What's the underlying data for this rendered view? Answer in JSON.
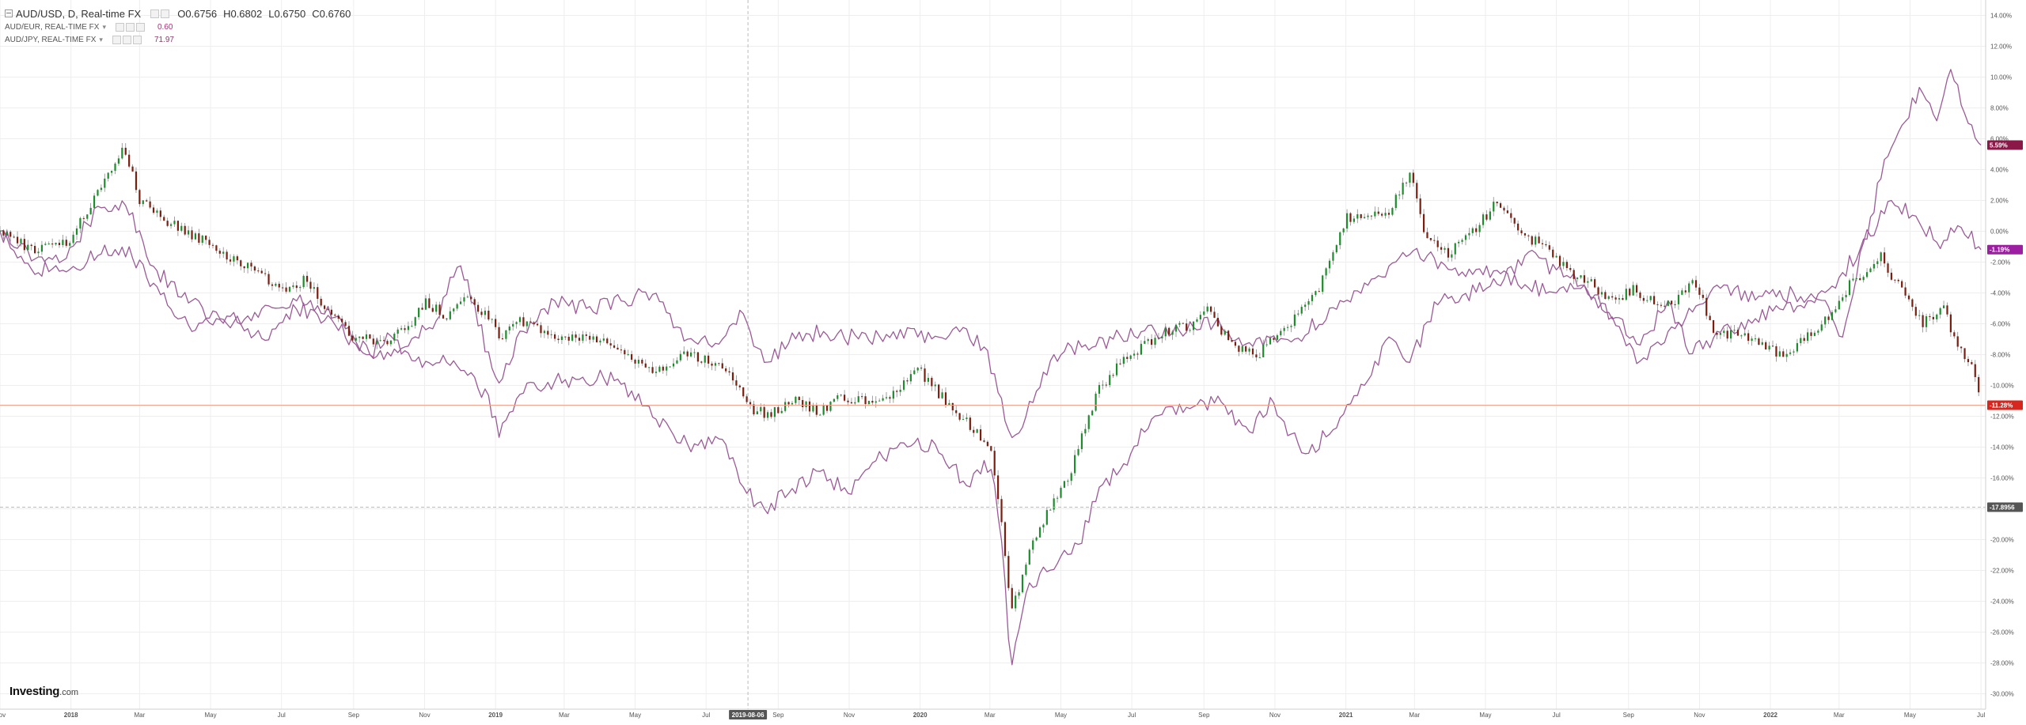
{
  "header": {
    "symbol_title": "AUD/USD, D, Real-time FX",
    "ohlc": {
      "open": "O0.6756",
      "high": "H0.6802",
      "low": "L0.6750",
      "close": "C0.6760"
    },
    "overlays": [
      {
        "label": "AUD/EUR, REAL-TIME FX",
        "value": "0.60",
        "color": "#b0297a"
      },
      {
        "label": "AUD/JPY, REAL-TIME FX",
        "value": "71.97",
        "color": "#8d3b6b"
      }
    ]
  },
  "watermark": {
    "brand": "Investing",
    "suffix": ".com"
  },
  "colors": {
    "up_candle": "#1e8c2c",
    "down_candle": "#7a1e10",
    "compare_line": "#9b5a97",
    "price_line": "#f3a28d",
    "price_badge": "#d7261e",
    "jpy_badge": "#8a1948",
    "eur_badge": "#9b1fa0",
    "crosshair_badge": "#555555",
    "grid": "#eeeeee"
  },
  "chart_data": {
    "type": "line",
    "title": "AUD/USD, D, Real-time FX",
    "x_range": [
      "2017-11-01",
      "2022-07-05"
    ],
    "y_unit": "%",
    "y_range": [
      -31,
      15
    ],
    "y_ticks": [
      "14.00%",
      "12.00%",
      "10.00%",
      "8.00%",
      "6.00%",
      "4.00%",
      "2.00%",
      "0.00%",
      "-2.00%",
      "-4.00%",
      "-6.00%",
      "-8.00%",
      "-10.00%",
      "-12.00%",
      "-14.00%",
      "-16.00%",
      "-18.00%",
      "-20.00%",
      "-22.00%",
      "-24.00%",
      "-26.00%",
      "-28.00%",
      "-30.00%"
    ],
    "y_tick_values": [
      14,
      12,
      10,
      8,
      6,
      4,
      2,
      0,
      -2,
      -4,
      -6,
      -8,
      -10,
      -12,
      -14,
      -16,
      -18,
      -20,
      -22,
      -24,
      -26,
      -28,
      -30
    ],
    "x_ticks": [
      {
        "label": "Nov",
        "date": "2017-11-01"
      },
      {
        "label": "2018",
        "date": "2018-01-01"
      },
      {
        "label": "Mar",
        "date": "2018-03-01"
      },
      {
        "label": "May",
        "date": "2018-05-01"
      },
      {
        "label": "Jul",
        "date": "2018-07-01"
      },
      {
        "label": "Sep",
        "date": "2018-09-01"
      },
      {
        "label": "Nov",
        "date": "2018-11-01"
      },
      {
        "label": "2019",
        "date": "2019-01-01"
      },
      {
        "label": "Mar",
        "date": "2019-03-01"
      },
      {
        "label": "May",
        "date": "2019-05-01"
      },
      {
        "label": "Jul",
        "date": "2019-07-01"
      },
      {
        "label": "Sep",
        "date": "2019-09-01"
      },
      {
        "label": "Nov",
        "date": "2019-11-01"
      },
      {
        "label": "2020",
        "date": "2020-01-01"
      },
      {
        "label": "Mar",
        "date": "2020-03-01"
      },
      {
        "label": "May",
        "date": "2020-05-01"
      },
      {
        "label": "Jul",
        "date": "2020-07-01"
      },
      {
        "label": "Sep",
        "date": "2020-09-01"
      },
      {
        "label": "Nov",
        "date": "2020-11-01"
      },
      {
        "label": "2021",
        "date": "2021-01-01"
      },
      {
        "label": "Mar",
        "date": "2021-03-01"
      },
      {
        "label": "May",
        "date": "2021-05-01"
      },
      {
        "label": "Jul",
        "date": "2021-07-01"
      },
      {
        "label": "Sep",
        "date": "2021-09-01"
      },
      {
        "label": "Nov",
        "date": "2021-11-01"
      },
      {
        "label": "2022",
        "date": "2022-01-01"
      },
      {
        "label": "Mar",
        "date": "2022-03-01"
      },
      {
        "label": "May",
        "date": "2022-05-01"
      },
      {
        "label": "Jul",
        "date": "2022-07-01"
      }
    ],
    "crosshair": {
      "x_label": "2019-08-06",
      "x_date": "2019-08-06",
      "y_label": "-17.8956",
      "y_value": -17.8956
    },
    "last_value_labels": [
      {
        "series": "AUD/JPY, REAL-TIME FX",
        "label": "5.59%",
        "value": 5.59
      },
      {
        "series": "AUD/EUR, REAL-TIME FX",
        "label": "-1.19%",
        "value": -1.19
      },
      {
        "series": "AUD/USD, D, Real-time FX",
        "label": "-11.28%",
        "value": -11.28
      }
    ],
    "price_line_value": -11.28,
    "grid": true,
    "series": [
      {
        "name": "AUD/USD, D, Real-time FX",
        "style": "candlestick",
        "x": [
          "2017-11-01",
          "2017-12-01",
          "2018-01-01",
          "2018-01-26",
          "2018-02-15",
          "2018-03-01",
          "2018-03-20",
          "2018-04-15",
          "2018-05-01",
          "2018-05-20",
          "2018-06-10",
          "2018-07-01",
          "2018-07-20",
          "2018-08-10",
          "2018-09-01",
          "2018-09-25",
          "2018-10-15",
          "2018-11-01",
          "2018-11-20",
          "2018-12-05",
          "2019-01-01",
          "2019-01-03",
          "2019-01-20",
          "2019-02-10",
          "2019-03-01",
          "2019-03-20",
          "2019-04-10",
          "2019-05-01",
          "2019-05-20",
          "2019-06-10",
          "2019-07-01",
          "2019-07-20",
          "2019-08-06",
          "2019-08-25",
          "2019-09-15",
          "2019-10-05",
          "2019-10-25",
          "2019-11-15",
          "2019-12-05",
          "2019-12-31",
          "2020-01-20",
          "2020-02-10",
          "2020-03-01",
          "2020-03-10",
          "2020-03-19",
          "2020-04-01",
          "2020-04-20",
          "2020-05-10",
          "2020-06-01",
          "2020-06-20",
          "2020-07-10",
          "2020-08-01",
          "2020-08-20",
          "2020-09-05",
          "2020-09-25",
          "2020-10-15",
          "2020-11-01",
          "2020-11-20",
          "2020-12-10",
          "2021-01-01",
          "2021-01-20",
          "2021-02-05",
          "2021-02-25",
          "2021-03-10",
          "2021-03-31",
          "2021-04-20",
          "2021-05-10",
          "2021-06-01",
          "2021-06-20",
          "2021-07-10",
          "2021-08-01",
          "2021-08-20",
          "2021-09-05",
          "2021-09-25",
          "2021-10-15",
          "2021-10-27",
          "2021-11-15",
          "2021-12-05",
          "2021-12-25",
          "2022-01-15",
          "2022-02-01",
          "2022-02-20",
          "2022-03-10",
          "2022-04-05",
          "2022-04-20",
          "2022-05-12",
          "2022-05-31",
          "2022-06-10",
          "2022-06-25",
          "2022-07-01"
        ],
        "values": [
          0.0,
          -1.3,
          -0.5,
          2.8,
          5.6,
          2.0,
          0.8,
          -0.2,
          -0.8,
          -1.8,
          -2.5,
          -3.8,
          -3.2,
          -5.0,
          -6.9,
          -7.2,
          -6.5,
          -4.5,
          -5.6,
          -4.0,
          -6.0,
          -7.2,
          -5.8,
          -6.5,
          -7.0,
          -6.8,
          -7.4,
          -8.6,
          -9.0,
          -8.0,
          -8.3,
          -9.0,
          -11.5,
          -11.9,
          -10.8,
          -11.8,
          -10.8,
          -11.0,
          -10.6,
          -9.0,
          -10.8,
          -12.4,
          -13.8,
          -18.2,
          -25.0,
          -21.5,
          -18.0,
          -15.5,
          -10.5,
          -8.5,
          -7.5,
          -6.4,
          -6.2,
          -5.0,
          -7.5,
          -8.1,
          -7.0,
          -5.5,
          -3.5,
          0.8,
          1.2,
          1.0,
          3.8,
          -0.5,
          -1.4,
          0.0,
          1.8,
          -0.1,
          -1.0,
          -2.5,
          -3.5,
          -4.5,
          -3.8,
          -4.8,
          -4.3,
          -3.0,
          -6.8,
          -6.5,
          -7.4,
          -8.2,
          -6.8,
          -5.5,
          -3.5,
          -1.6,
          -3.4,
          -6.0,
          -5.1,
          -7.5,
          -9.0,
          -11.28
        ]
      },
      {
        "name": "AUD/JPY, REAL-TIME FX",
        "style": "line",
        "x": [
          "2017-11-01",
          "2017-12-01",
          "2018-01-01",
          "2018-01-26",
          "2018-02-15",
          "2018-03-15",
          "2018-04-15",
          "2018-05-15",
          "2018-06-15",
          "2018-07-15",
          "2018-08-15",
          "2018-09-15",
          "2018-10-01",
          "2018-10-25",
          "2018-11-20",
          "2018-12-15",
          "2019-01-01",
          "2019-01-03",
          "2019-01-25",
          "2019-02-15",
          "2019-03-15",
          "2019-04-15",
          "2019-05-15",
          "2019-06-15",
          "2019-07-15",
          "2019-08-05",
          "2019-08-20",
          "2019-09-10",
          "2019-10-05",
          "2019-10-31",
          "2019-11-25",
          "2019-12-20",
          "2020-01-15",
          "2020-02-10",
          "2020-03-01",
          "2020-03-10",
          "2020-03-19",
          "2020-04-01",
          "2020-04-20",
          "2020-05-15",
          "2020-06-05",
          "2020-06-25",
          "2020-07-20",
          "2020-08-20",
          "2020-09-15",
          "2020-10-10",
          "2020-10-30",
          "2020-11-25",
          "2020-12-20",
          "2021-01-15",
          "2021-02-10",
          "2021-02-25",
          "2021-03-20",
          "2021-04-15",
          "2021-05-10",
          "2021-06-05",
          "2021-07-01",
          "2021-07-25",
          "2021-08-20",
          "2021-09-10",
          "2021-10-05",
          "2021-10-25",
          "2021-11-20",
          "2021-12-15",
          "2022-01-10",
          "2022-02-05",
          "2022-03-01",
          "2022-03-25",
          "2022-04-10",
          "2022-04-25",
          "2022-05-10",
          "2022-05-25",
          "2022-06-05",
          "2022-06-20",
          "2022-07-01"
        ],
        "values": [
          0.0,
          -1.8,
          -2.5,
          -1.5,
          -1.0,
          -3.5,
          -6.5,
          -5.5,
          -7.0,
          -5.0,
          -6.0,
          -8.0,
          -6.5,
          -8.5,
          -8.5,
          -9.5,
          -12.0,
          -13.5,
          -10.5,
          -9.8,
          -9.6,
          -9.5,
          -12.0,
          -13.8,
          -13.5,
          -17.0,
          -18.0,
          -17.0,
          -15.5,
          -17.0,
          -14.8,
          -14.0,
          -13.8,
          -16.5,
          -15.0,
          -19.0,
          -28.5,
          -23.5,
          -22.0,
          -20.5,
          -16.5,
          -15.0,
          -12.0,
          -11.5,
          -11.0,
          -13.0,
          -11.0,
          -14.5,
          -13.0,
          -9.8,
          -7.0,
          -8.5,
          -4.8,
          -4.0,
          -3.5,
          -1.5,
          -2.5,
          -3.5,
          -5.5,
          -7.5,
          -4.5,
          -8.0,
          -6.5,
          -6.0,
          -5.0,
          -4.5,
          -3.0,
          -0.5,
          5.0,
          7.0,
          9.5,
          7.0,
          10.5,
          7.0,
          5.59
        ]
      },
      {
        "name": "AUD/EUR, REAL-TIME FX",
        "style": "line",
        "x": [
          "2017-11-01",
          "2017-12-01",
          "2018-01-01",
          "2018-01-26",
          "2018-02-15",
          "2018-03-15",
          "2018-04-15",
          "2018-05-15",
          "2018-06-15",
          "2018-07-15",
          "2018-08-15",
          "2018-09-15",
          "2018-10-15",
          "2018-11-10",
          "2018-12-01",
          "2019-01-03",
          "2019-01-25",
          "2019-02-20",
          "2019-03-20",
          "2019-04-20",
          "2019-05-15",
          "2019-06-15",
          "2019-07-15",
          "2019-07-31",
          "2019-08-20",
          "2019-09-15",
          "2019-10-10",
          "2019-11-10",
          "2019-12-10",
          "2020-01-10",
          "2020-02-05",
          "2020-02-25",
          "2020-03-10",
          "2020-03-19",
          "2020-04-01",
          "2020-04-25",
          "2020-05-20",
          "2020-06-15",
          "2020-07-10",
          "2020-08-10",
          "2020-09-10",
          "2020-10-05",
          "2020-10-25",
          "2020-11-20",
          "2020-12-20",
          "2021-01-20",
          "2021-02-25",
          "2021-03-25",
          "2021-04-20",
          "2021-05-10",
          "2021-06-05",
          "2021-07-01",
          "2021-07-25",
          "2021-08-20",
          "2021-09-10",
          "2021-10-05",
          "2021-10-31",
          "2021-11-25",
          "2021-12-20",
          "2022-01-20",
          "2022-02-15",
          "2022-03-05",
          "2022-03-20",
          "2022-04-15",
          "2022-05-10",
          "2022-05-25",
          "2022-06-15",
          "2022-07-01"
        ],
        "values": [
          0.0,
          -2.8,
          -1.0,
          1.5,
          2.0,
          -2.5,
          -4.5,
          -6.0,
          -5.0,
          -4.5,
          -5.5,
          -8.0,
          -7.5,
          -6.0,
          -2.0,
          -10.0,
          -6.5,
          -4.5,
          -5.0,
          -4.5,
          -4.0,
          -7.0,
          -7.0,
          -5.0,
          -8.5,
          -7.0,
          -6.5,
          -7.0,
          -6.5,
          -7.0,
          -6.5,
          -7.5,
          -10.5,
          -13.5,
          -12.0,
          -8.0,
          -7.5,
          -7.0,
          -6.5,
          -6.5,
          -6.0,
          -7.5,
          -6.8,
          -7.0,
          -5.0,
          -3.5,
          -1.5,
          -2.0,
          -2.8,
          -2.5,
          -3.5,
          -4.0,
          -3.5,
          -6.0,
          -8.5,
          -6.5,
          -4.8,
          -3.5,
          -4.5,
          -4.0,
          -4.5,
          -7.0,
          -1.0,
          2.0,
          0.5,
          -0.8,
          0.3,
          -1.19
        ]
      }
    ]
  }
}
